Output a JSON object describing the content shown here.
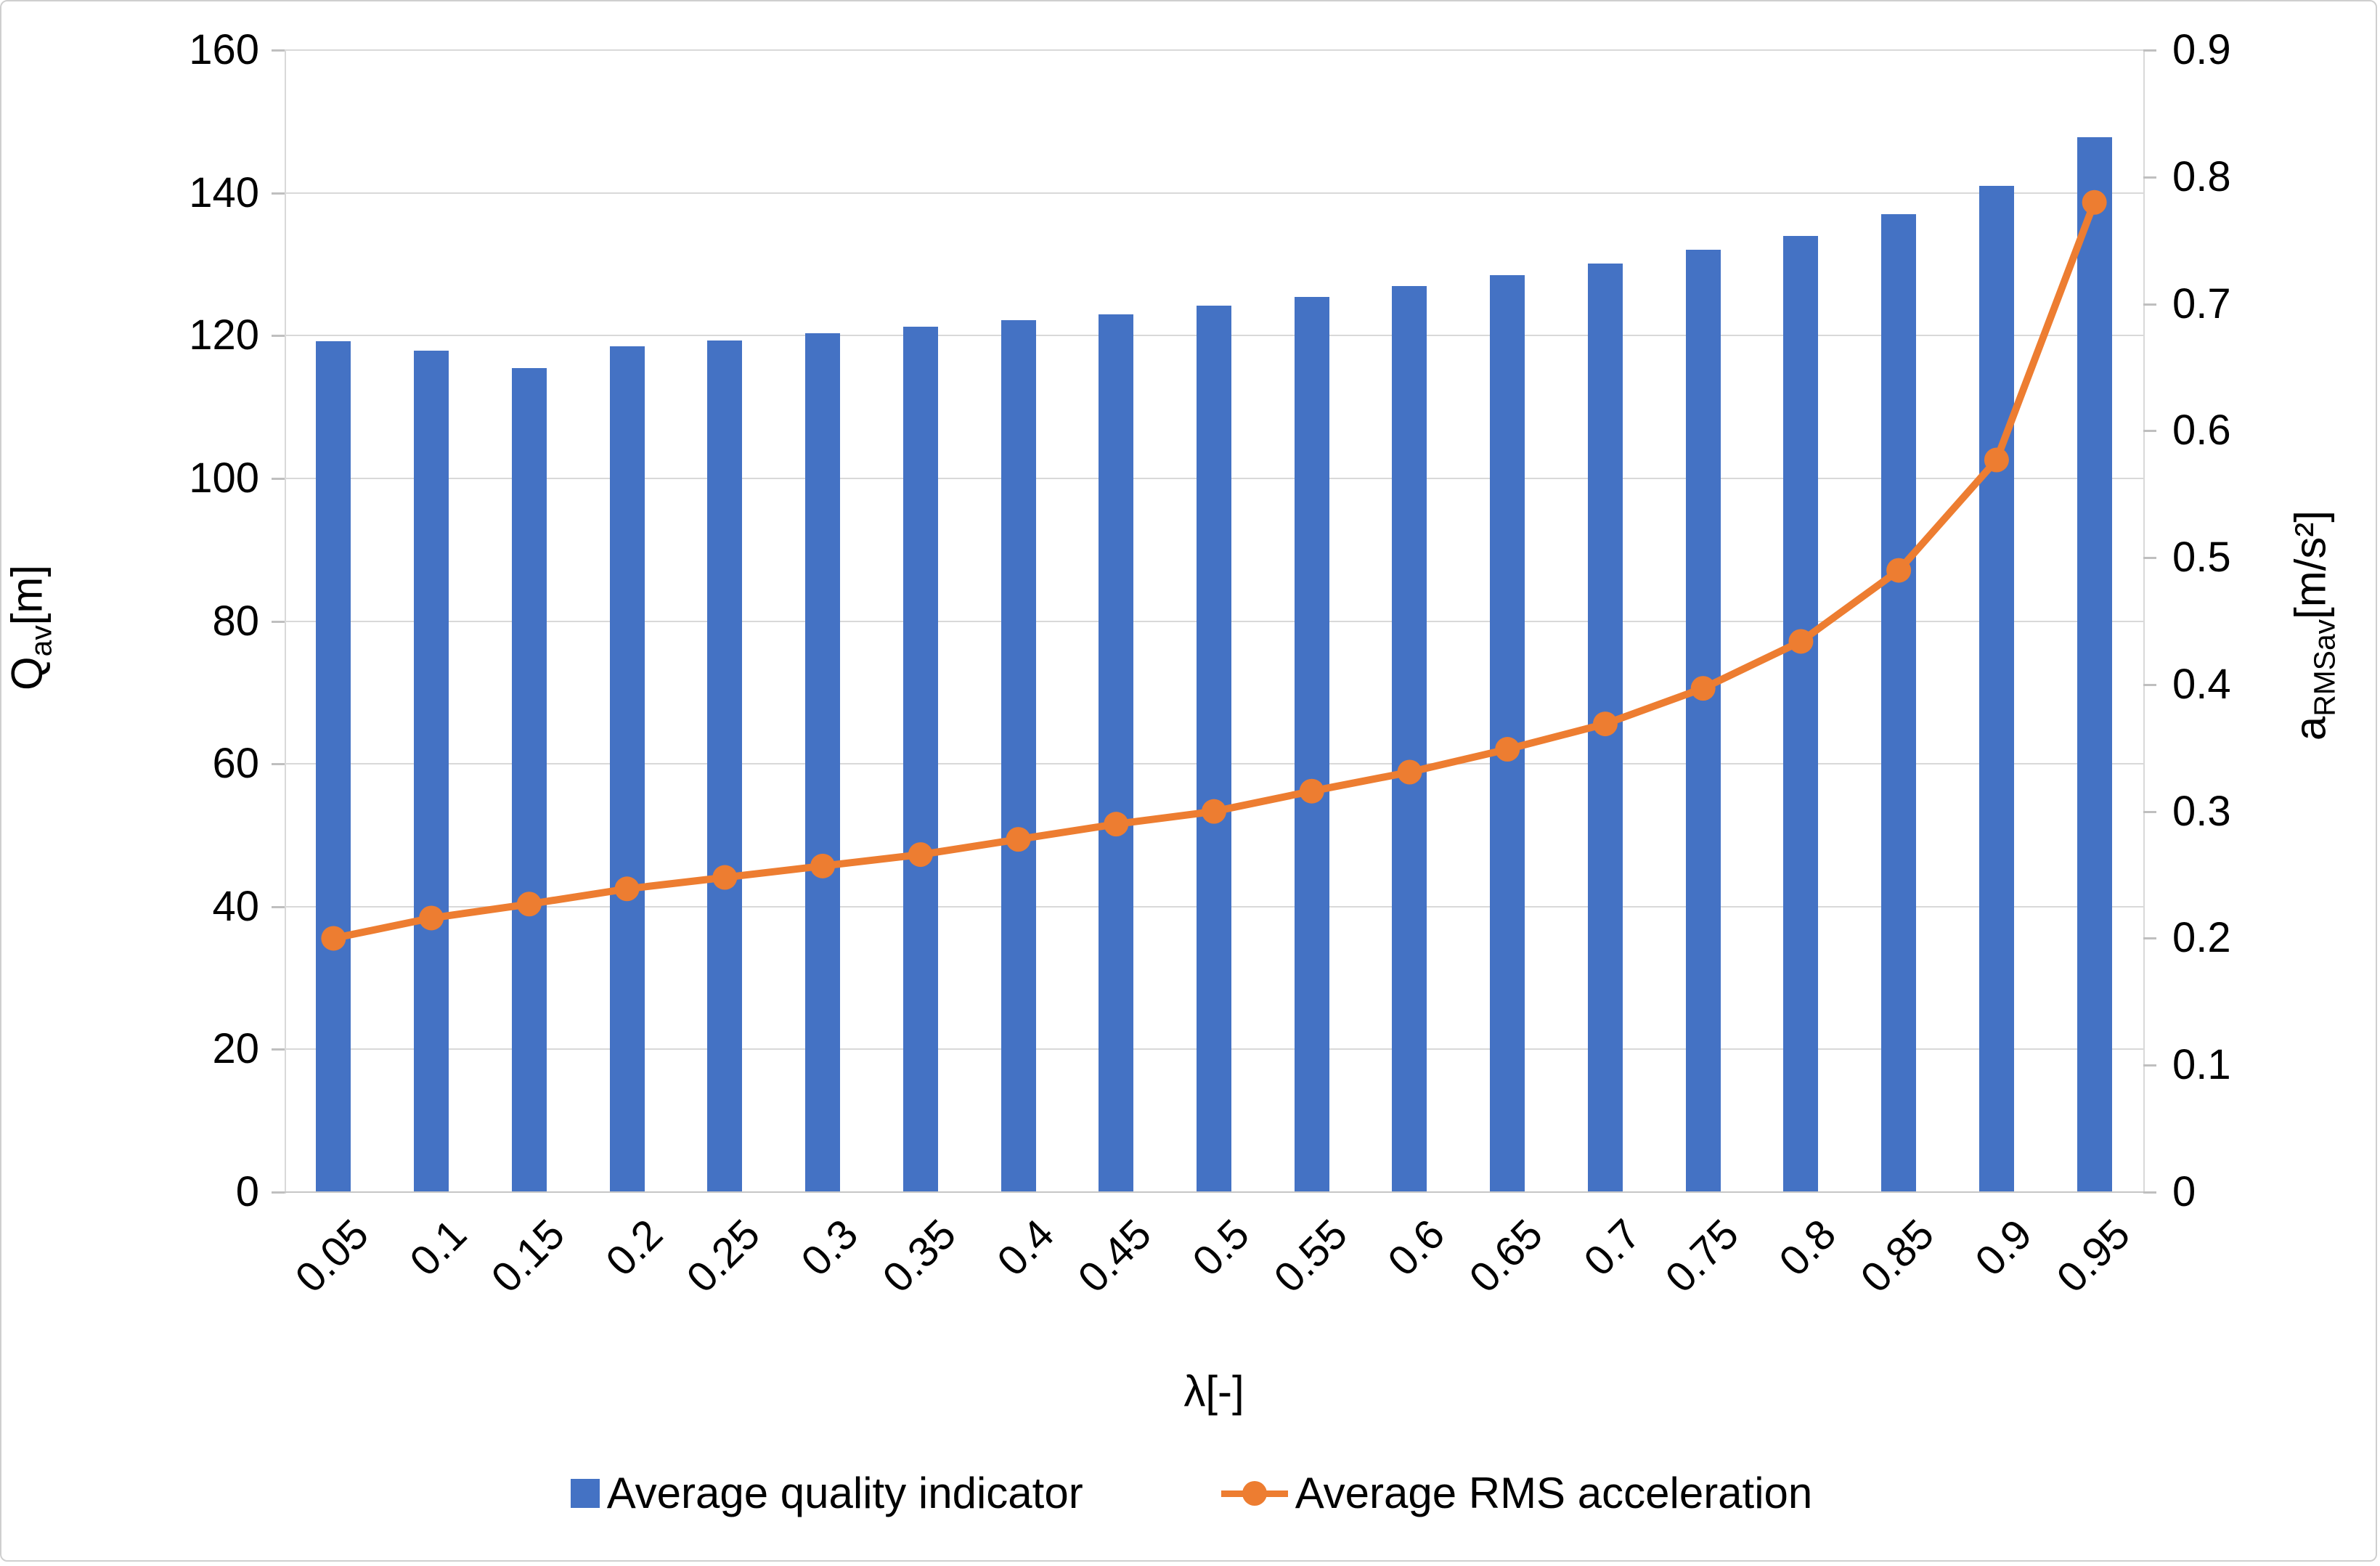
{
  "chart_data": {
    "type": "bar",
    "subtype": "bar-line-combo-dual-axis",
    "categories": [
      "0.05",
      "0.1",
      "0.15",
      "0.2",
      "0.25",
      "0.3",
      "0.35",
      "0.4",
      "0.45",
      "0.5",
      "0.55",
      "0.6",
      "0.65",
      "0.7",
      "0.75",
      "0.8",
      "0.85",
      "0.9",
      "0.95"
    ],
    "series": [
      {
        "name": "Average quality indicator",
        "type": "bar",
        "axis": "left",
        "color": "#4472C4",
        "values": [
          119.2,
          117.9,
          115.4,
          118.5,
          119.3,
          120.3,
          121.2,
          122.2,
          123.0,
          124.2,
          125.4,
          126.9,
          128.5,
          130.1,
          132.0,
          134.0,
          137.0,
          141.0,
          147.8
        ]
      },
      {
        "name": "Average RMS acceleration",
        "type": "line",
        "axis": "right",
        "color": "#ED7D31",
        "values": [
          0.2,
          0.216,
          0.227,
          0.239,
          0.248,
          0.257,
          0.266,
          0.278,
          0.29,
          0.3,
          0.316,
          0.331,
          0.349,
          0.369,
          0.397,
          0.434,
          0.49,
          0.577,
          0.78
        ]
      }
    ],
    "x_axis": {
      "title": "λ[-]"
    },
    "left_axis": {
      "title_main": "Q",
      "title_sub": "av",
      "title_unit": "[m]",
      "min": 0,
      "max": 160,
      "step": 20,
      "ticks": [
        "160",
        "140",
        "120",
        "100",
        "80",
        "60",
        "40",
        "20",
        "0"
      ]
    },
    "right_axis": {
      "title_main": "a",
      "title_sub": "RMSav",
      "title_unit": "[m/s²]",
      "min": 0,
      "max": 0.9,
      "step": 0.1,
      "ticks": [
        "0.9",
        "0.8",
        "0.7",
        "0.6",
        "0.5",
        "0.4",
        "0.3",
        "0.2",
        "0.1",
        "0"
      ]
    },
    "legend": [
      {
        "label": "Average quality indicator",
        "marker": "square",
        "color": "#4472C4"
      },
      {
        "label": "Average RMS acceleration",
        "marker": "line-dot",
        "color": "#ED7D31"
      }
    ],
    "legend_position": "bottom",
    "grid": true,
    "gridline_color": "#D9D9D9",
    "background_color": "#FFFFFF"
  }
}
